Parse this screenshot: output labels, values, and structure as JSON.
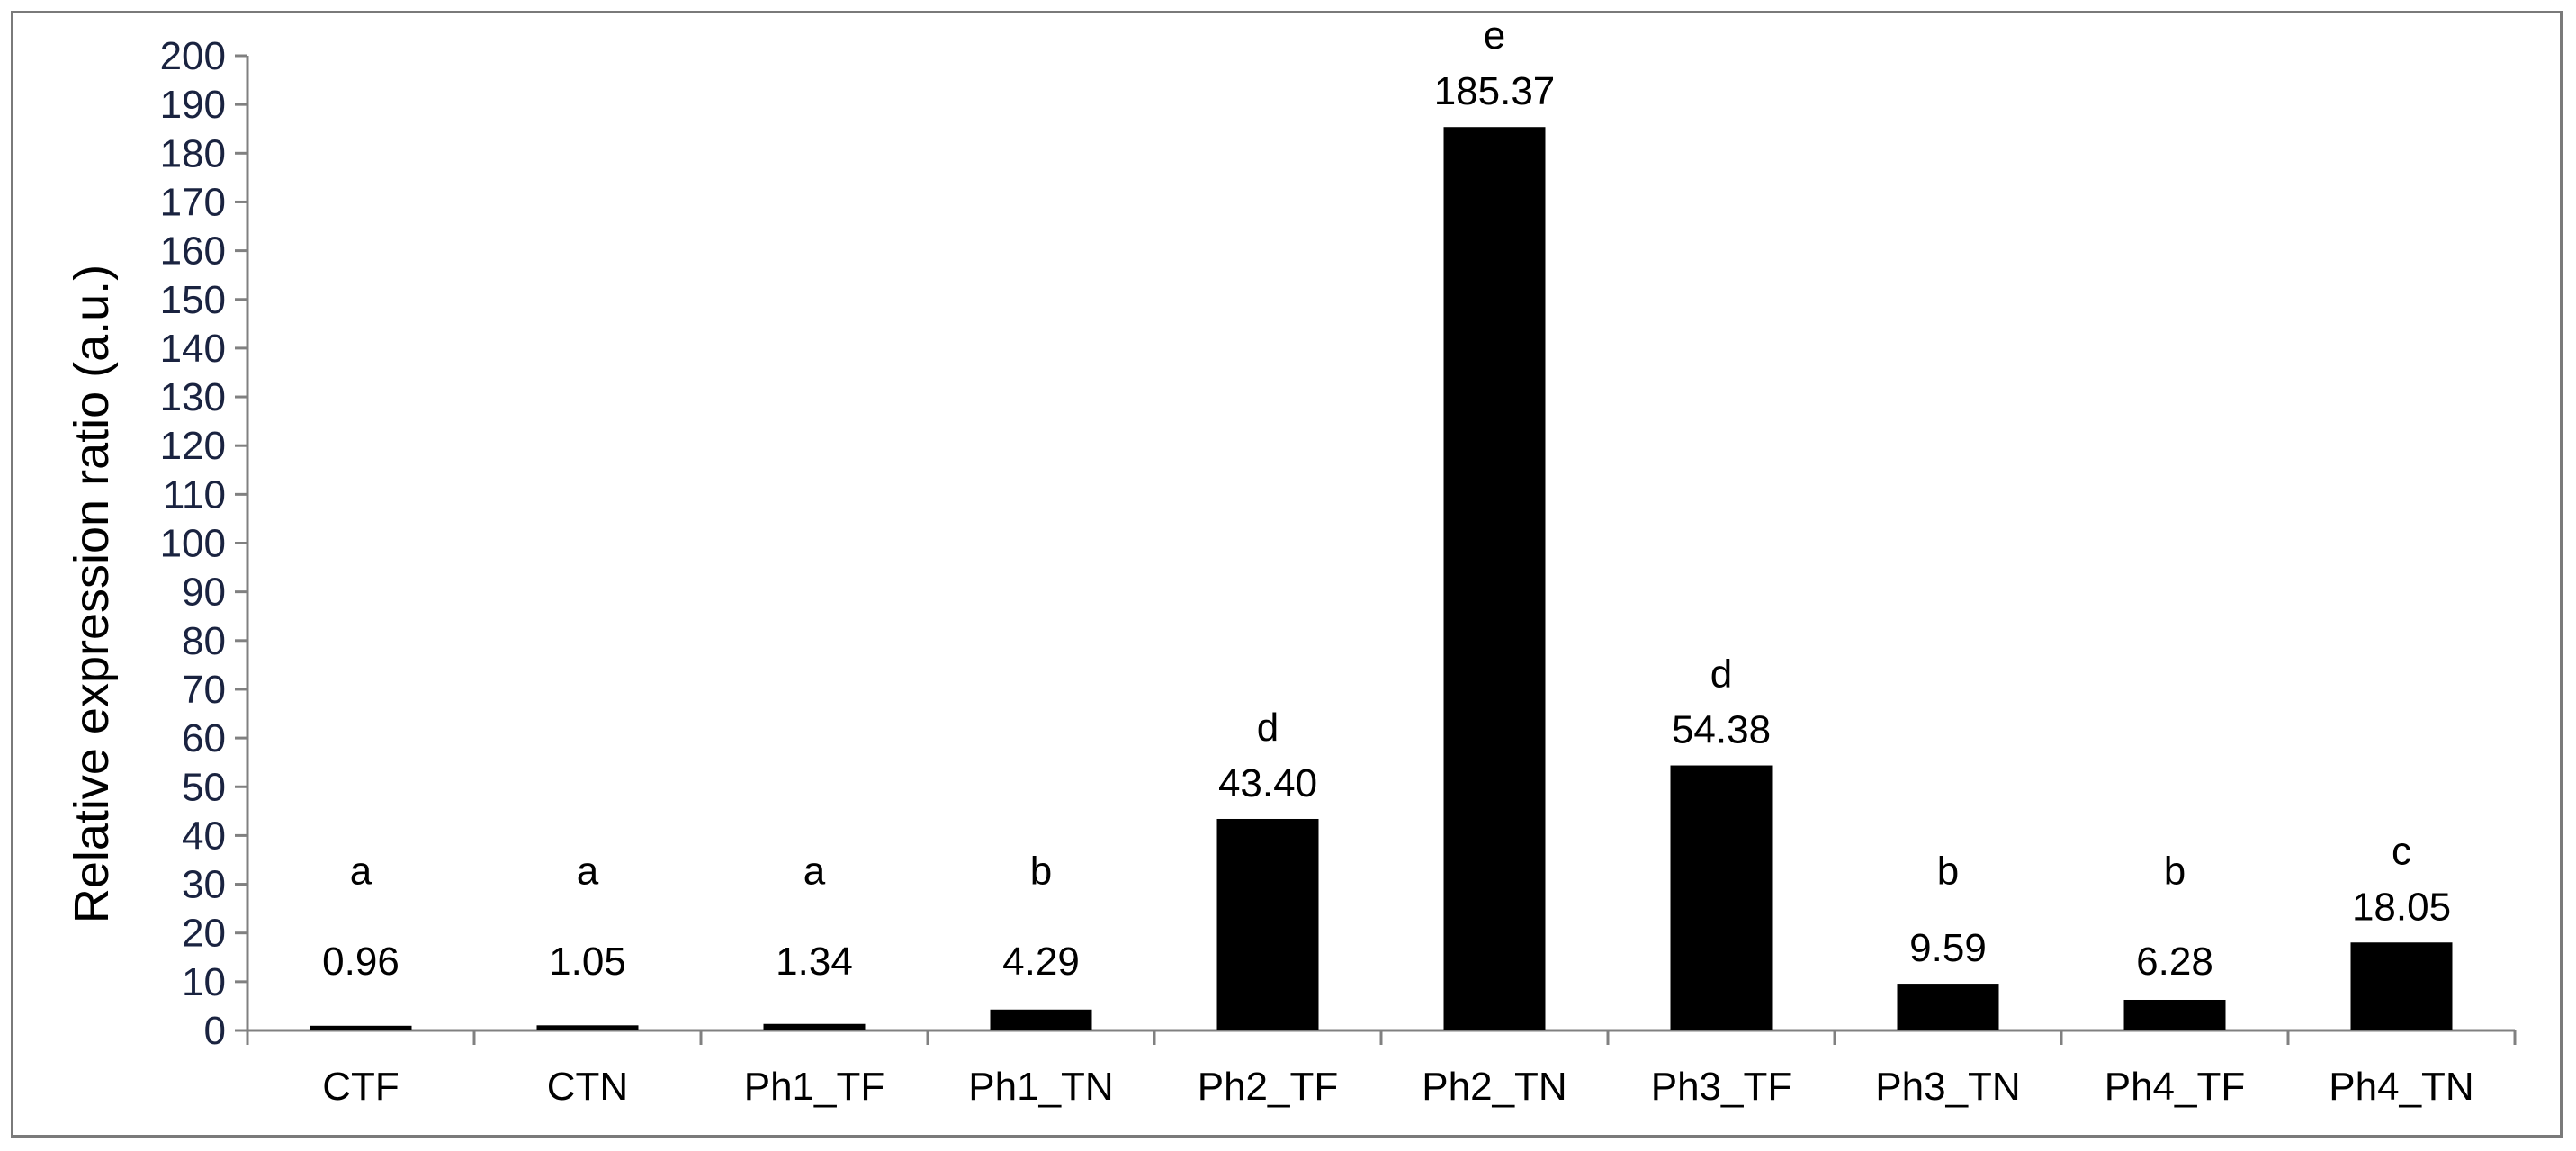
{
  "chart_data": {
    "type": "bar",
    "ylabel": "Relative expression ratio (a.u.)",
    "xlabel": "",
    "title": "",
    "ylim": [
      0,
      200
    ],
    "ytick_step": 10,
    "grid": false,
    "legend": "none",
    "categories": [
      "CTF",
      "CTN",
      "Ph1_TF",
      "Ph1_TN",
      "Ph2_TF",
      "Ph2_TN",
      "Ph3_TF",
      "Ph3_TN",
      "Ph4_TF",
      "Ph4_TN"
    ],
    "values": [
      0.96,
      1.05,
      1.34,
      4.29,
      43.4,
      185.37,
      54.38,
      9.59,
      6.28,
      18.05
    ],
    "value_labels": [
      "0.96",
      "1.05",
      "1.34",
      "4.29",
      "43.40",
      "185.37",
      "54.38",
      "9.59",
      "6.28",
      "18.05"
    ],
    "significance_letters": [
      "a",
      "a",
      "a",
      "b",
      "d",
      "e",
      "d",
      "b",
      "b",
      "c"
    ],
    "bar_color": "#000000",
    "axis_color": "#808080"
  }
}
